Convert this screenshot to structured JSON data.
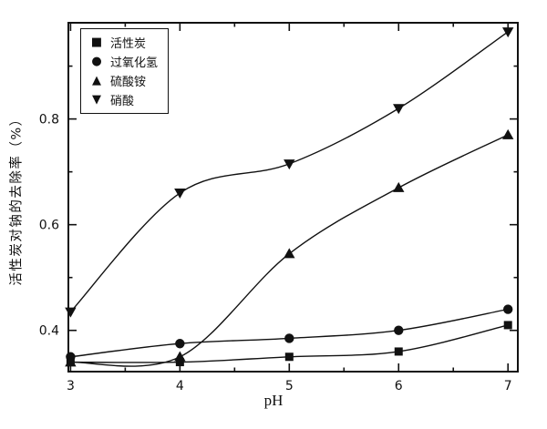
{
  "chart_data": {
    "type": "line",
    "title": "",
    "xlabel": "pH",
    "ylabel": "活性炭对钠的去除率（%）",
    "x": [
      3,
      4,
      5,
      6,
      7
    ],
    "x_ticks": [
      3,
      4,
      5,
      6,
      7
    ],
    "x_minor_ticks": [
      3.5,
      4.5,
      5.5,
      6.5
    ],
    "y_ticks": [
      0.4,
      0.6,
      0.8
    ],
    "y_minor_ticks": [
      0.5,
      0.7,
      0.9
    ],
    "xlim": [
      2.98,
      7.09
    ],
    "ylim": [
      0.322,
      0.982
    ],
    "grid": false,
    "legend_position": "top-left",
    "line_color": "#111111",
    "background_color": "#ffffff",
    "series": [
      {
        "id": "activated-carbon",
        "name": "活性炭",
        "marker": "square",
        "marker_glyph": "■",
        "values": [
          0.34,
          0.34,
          0.35,
          0.36,
          0.41
        ]
      },
      {
        "id": "hydrogen-peroxide",
        "name": "过氧化氢",
        "marker": "circle",
        "marker_glyph": "●",
        "values": [
          0.35,
          0.375,
          0.385,
          0.4,
          0.44
        ]
      },
      {
        "id": "ammonium-sulfate",
        "name": "硫酸铵",
        "marker": "triangle-up",
        "marker_glyph": "▲",
        "values": [
          0.34,
          0.35,
          0.545,
          0.67,
          0.77
        ]
      },
      {
        "id": "nitric-acid",
        "name": "硝酸",
        "marker": "triangle-down",
        "marker_glyph": "▼",
        "values": [
          0.435,
          0.66,
          0.715,
          0.82,
          0.965
        ]
      }
    ]
  }
}
